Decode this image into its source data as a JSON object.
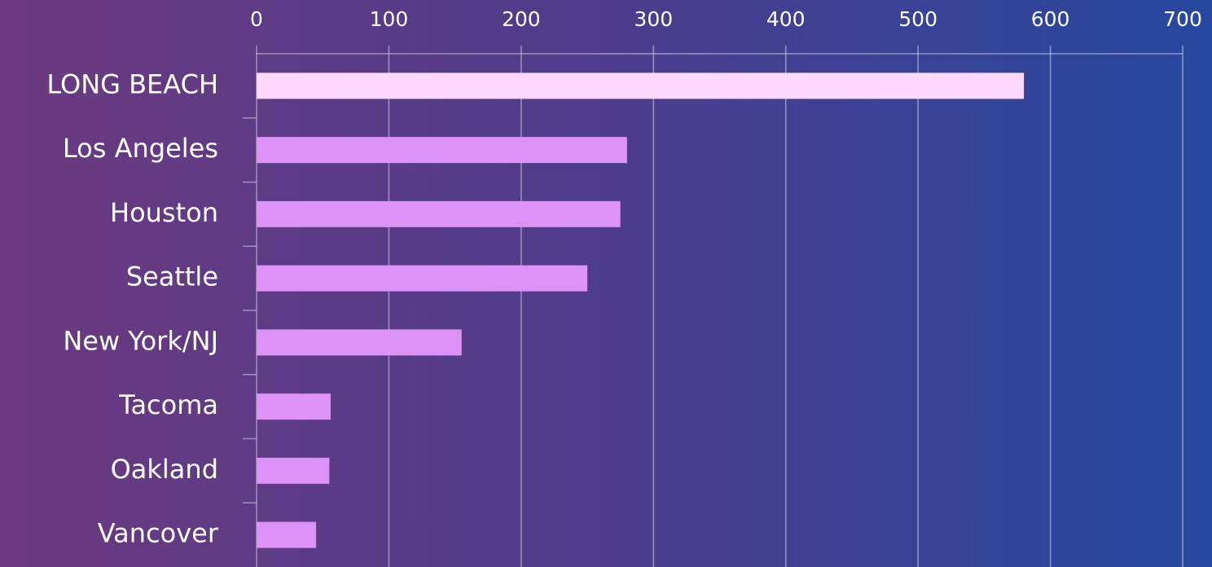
{
  "chart_data": {
    "type": "bar",
    "orientation": "horizontal",
    "categories": [
      "LONG BEACH",
      "Los Angeles",
      "Houston",
      "Seattle",
      "New York/NJ",
      "Tacoma",
      "Oakland",
      "Vancover"
    ],
    "values": [
      580,
      280,
      275,
      250,
      155,
      56,
      55,
      45
    ],
    "colors": [
      "#fcd9fc",
      "#dd92f5",
      "#dd92f5",
      "#dd92f5",
      "#dd92f5",
      "#dd92f5",
      "#dd92f5",
      "#dd92f5"
    ],
    "xlim": [
      0,
      700
    ],
    "xticks": [
      0,
      100,
      200,
      300,
      400,
      500,
      600,
      700
    ],
    "grid": true
  }
}
